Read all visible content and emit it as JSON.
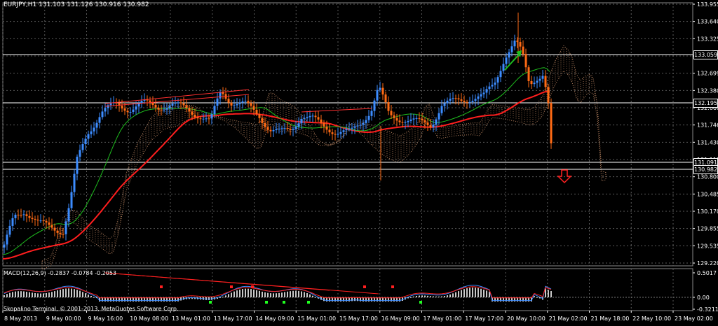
{
  "symbol_header": "EURJPY,H1  131.103 131.126 130.916 130.982",
  "macd_header": "MACD(12,26,9) -0.2837 -0.0784 -0.2053",
  "copyright": "Skopalino Terminal, © 2001-2013, MetaQuotes Software Corp.",
  "colors": {
    "background": "#000000",
    "grid": "#5a5a5a",
    "bull_candle": "#3c8cff",
    "bear_candle": "#ff6a14",
    "ma_fast": "#1ebe1e",
    "ma_slow": "#ff1e1e",
    "ichimoku_cloud": "#d2966e",
    "level_lines": "#ffffff",
    "macd_signal": "#ff2020",
    "macd_line": "#3c8cff",
    "macd_hist": "#c8c8c8"
  },
  "price_axis": [
    "133.955",
    "133.640",
    "133.325",
    "133.010",
    "132.699",
    "132.380",
    "132.060",
    "131.746",
    "131.430",
    "131.115",
    "130.800",
    "130.485",
    "130.170",
    "129.855",
    "129.535",
    "129.220"
  ],
  "price_levels": [
    "133.059",
    "132.195",
    "131.091",
    "130.982"
  ],
  "time_axis": [
    "8 May 2013",
    "9 May 00:00",
    "9 May 16:00",
    "10 May 08:00",
    "13 May 01:00",
    "13 May 17:00",
    "14 May 09:00",
    "15 May 01:00",
    "15 May 17:00",
    "16 May 09:00",
    "17 May 01:00",
    "17 May 17:00",
    "20 May 10:00",
    "21 May 02:00",
    "21 May 18:00",
    "22 May 10:00",
    "23 May 02:00"
  ],
  "macd_axis": [
    "0.5017",
    "0.00",
    "-0.3211"
  ],
  "icons": {
    "sell_arrow": "arrow-down-icon"
  }
}
